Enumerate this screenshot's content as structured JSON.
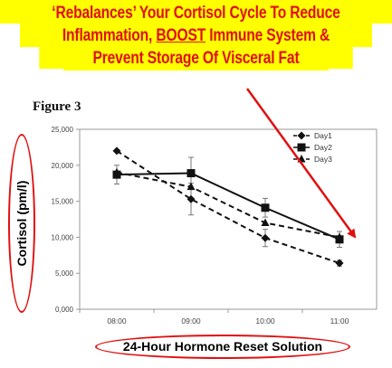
{
  "banner": {
    "line1": "‘Rebalances’ Your Cortisol Cycle To Reduce",
    "line2_pre": "Inflammation, ",
    "line2_emph": "BOOST",
    "line2_post": " Immune System &",
    "line3": "Prevent Storage Of Visceral Fat",
    "bg_color": "#ffff00",
    "text_color": "#e01010"
  },
  "figure_label": "Figure 3",
  "caption": "24-Hour Hormone Reset Solution",
  "accent_color": "#e01010",
  "chart_data": {
    "type": "line",
    "title": "",
    "xlabel": "",
    "ylabel": "Cortisol (pm/l)",
    "categories": [
      "08:00",
      "09:00",
      "10:00",
      "11:00"
    ],
    "y_ticks": [
      "0,000",
      "5,000",
      "10,000",
      "15,000",
      "20,000",
      "25,000"
    ],
    "ylim": [
      0,
      25000
    ],
    "grid": false,
    "legend_position": "top-right",
    "series": [
      {
        "name": "Day1",
        "values": [
          22000,
          15300,
          9900,
          6400
        ],
        "errors": [
          0,
          2200,
          1200,
          400
        ],
        "marker": "diamond",
        "line": "dashed"
      },
      {
        "name": "Day2",
        "values": [
          18700,
          18900,
          14100,
          9700
        ],
        "errors": [
          1300,
          2200,
          1300,
          1100
        ],
        "marker": "square",
        "line": "solid"
      },
      {
        "name": "Day3",
        "values": [
          19000,
          17000,
          12000,
          10000
        ],
        "errors": [
          0,
          0,
          0,
          0
        ],
        "marker": "triangle",
        "line": "dashed"
      }
    ]
  }
}
